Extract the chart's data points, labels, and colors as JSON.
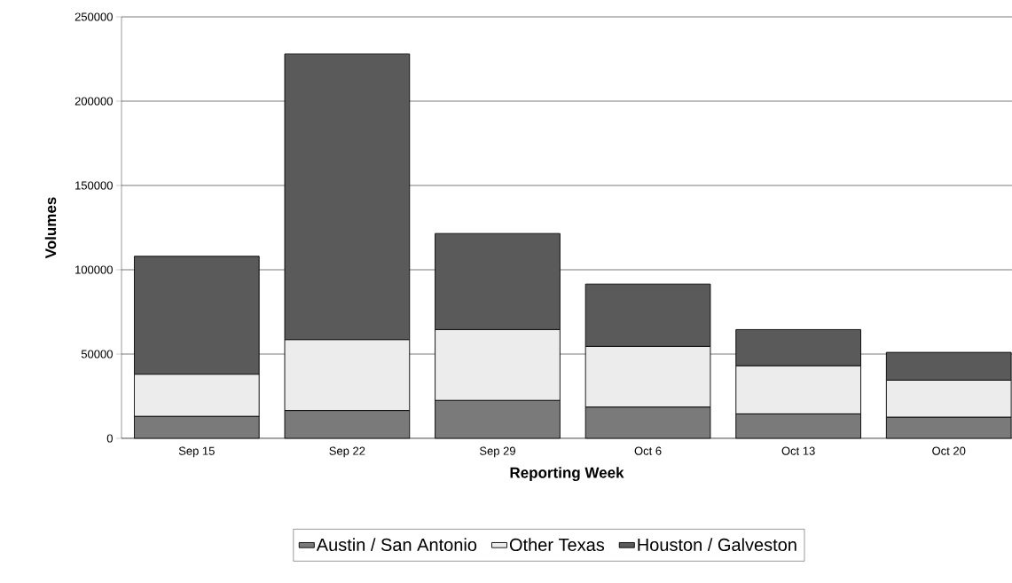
{
  "chart_data": {
    "type": "bar",
    "stacked": true,
    "xlabel": "Reporting Week",
    "ylabel": "Volumes",
    "categories": [
      "Sep 15",
      "Sep 22",
      "Sep 29",
      "Oct 6",
      "Oct 13",
      "Oct 20"
    ],
    "series": [
      {
        "name": "Austin / San Antonio",
        "color": "#7a7a7a",
        "values": [
          13000,
          16500,
          22500,
          18500,
          14500,
          12500
        ]
      },
      {
        "name": "Other Texas",
        "color": "#ececec",
        "values": [
          25000,
          42000,
          42000,
          36000,
          28500,
          22000
        ]
      },
      {
        "name": "Houston / Galveston",
        "color": "#5a5a5a",
        "values": [
          70000,
          169500,
          57000,
          37000,
          21500,
          16500
        ]
      }
    ],
    "ylim": [
      0,
      250000
    ],
    "yticks": [
      0,
      50000,
      100000,
      150000,
      200000,
      250000
    ],
    "grid": "y",
    "legend": "bottom"
  }
}
